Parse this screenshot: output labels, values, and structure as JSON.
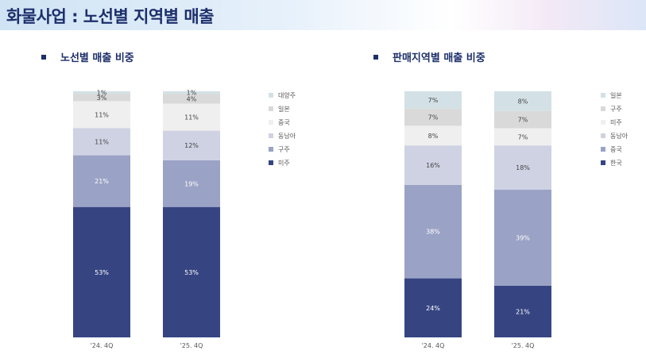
{
  "header": {
    "title": "화물사업 : 노선별 지역별 매출"
  },
  "colors": {
    "s1": "#364582",
    "s2": "#9aa2c5",
    "s3": "#cfd2e3",
    "s4": "#efefef",
    "s5": "#d9d9d9",
    "s6": "#d3e1e6"
  },
  "chart_data": [
    {
      "type": "bar",
      "stacked": true,
      "title": "노선별 매출 비중",
      "categories": [
        "'24. 4Q",
        "'25. 4Q"
      ],
      "series": [
        {
          "name": "미주",
          "values": [
            53,
            53
          ],
          "labels": [
            "53%",
            "53%"
          ]
        },
        {
          "name": "구주",
          "values": [
            21,
            19
          ],
          "labels": [
            "21%",
            "19%"
          ]
        },
        {
          "name": "동남아",
          "values": [
            11,
            12
          ],
          "labels": [
            "11%",
            "12%"
          ]
        },
        {
          "name": "중국",
          "values": [
            11,
            11
          ],
          "labels": [
            "11%",
            "11%"
          ]
        },
        {
          "name": "일본",
          "values": [
            3,
            4
          ],
          "labels": [
            "3%",
            "4%"
          ]
        },
        {
          "name": "대양주",
          "values": [
            1,
            1
          ],
          "labels": [
            "1%",
            "1%"
          ]
        }
      ],
      "legend_order": [
        "대양주",
        "일본",
        "중국",
        "동남아",
        "구주",
        "미주"
      ],
      "ylim": [
        0,
        100
      ]
    },
    {
      "type": "bar",
      "stacked": true,
      "title": "판매지역별 매출 비중",
      "categories": [
        "'24. 4Q",
        "'25. 4Q"
      ],
      "series": [
        {
          "name": "한국",
          "values": [
            24,
            21
          ],
          "labels": [
            "24%",
            "21%"
          ]
        },
        {
          "name": "중국",
          "values": [
            38,
            39
          ],
          "labels": [
            "38%",
            "39%"
          ]
        },
        {
          "name": "동남아",
          "values": [
            16,
            18
          ],
          "labels": [
            "16%",
            "18%"
          ]
        },
        {
          "name": "미주",
          "values": [
            8,
            7
          ],
          "labels": [
            "8%",
            "7%"
          ]
        },
        {
          "name": "구주",
          "values": [
            7,
            7
          ],
          "labels": [
            "7%",
            "7%"
          ]
        },
        {
          "name": "일본",
          "values": [
            7,
            8
          ],
          "labels": [
            "7%",
            "8%"
          ]
        }
      ],
      "legend_order": [
        "일본",
        "구주",
        "미주",
        "동남아",
        "중국",
        "한국"
      ],
      "ylim": [
        0,
        100
      ]
    }
  ]
}
